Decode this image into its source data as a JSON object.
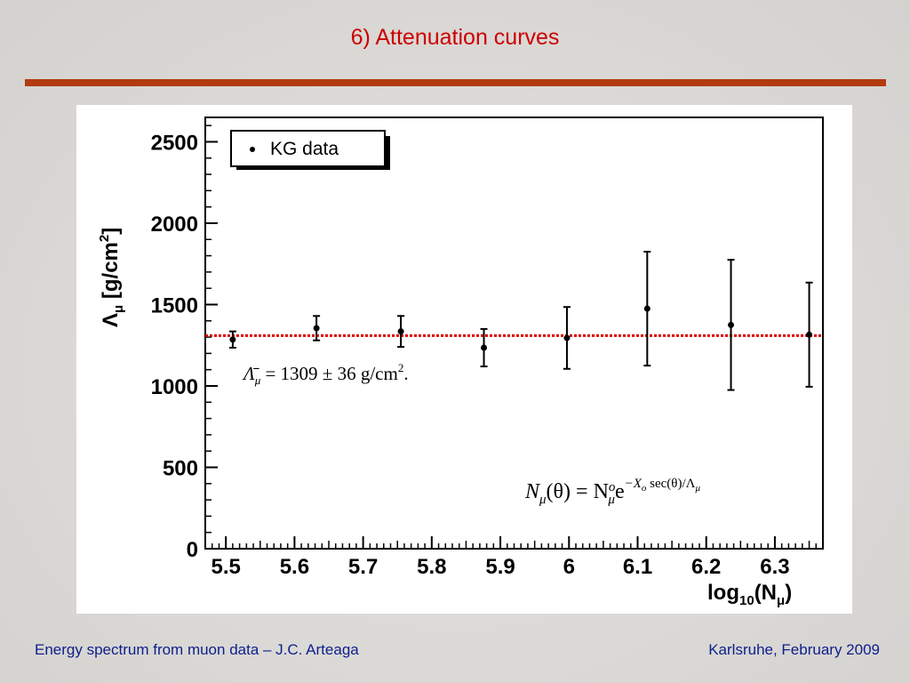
{
  "slide": {
    "title": "6) Attenuation curves",
    "footer_left": "Energy spectrum from muon data – J.C. Arteaga",
    "footer_right": "Karlsruhe,  February 2009"
  },
  "colors": {
    "title": "#cc0000",
    "rule": "#b33a10",
    "footer": "#0d1e8c",
    "fit_line": "#dd0000"
  },
  "chart_data": {
    "type": "scatter",
    "xlabel": "log10(Nμ)",
    "ylabel": "Λμ [g/cm2]",
    "xlim": [
      5.47,
      6.37
    ],
    "ylim": [
      0,
      2650
    ],
    "xticks": [
      "5.5",
      "5.6",
      "5.7",
      "5.8",
      "5.9",
      "6",
      "6.1",
      "6.2",
      "6.3"
    ],
    "yticks": [
      "0",
      "500",
      "1000",
      "1500",
      "2000",
      "2500"
    ],
    "legend": {
      "label": "KG data",
      "position": "top-left"
    },
    "series": [
      {
        "name": "KG data",
        "x": [
          5.51,
          5.632,
          5.755,
          5.876,
          5.997,
          6.114,
          6.236,
          6.35
        ],
        "y": [
          1285,
          1355,
          1335,
          1235,
          1295,
          1475,
          1375,
          1315
        ],
        "err": [
          50,
          75,
          95,
          115,
          190,
          350,
          400,
          320
        ]
      }
    ],
    "fit": {
      "value": 1309
    },
    "annotations": {
      "fit_text": "= 1309 ± 36 g/cm",
      "formula_base": "N",
      "formula_sub": "μ",
      "formula_paren": "(θ) = N",
      "formula_sup_o": "o",
      "formula_e": "e",
      "formula_exp": "−X",
      "formula_exp_sub": "o",
      "formula_exp_rest": " sec(θ)/Λ"
    },
    "grid": false
  }
}
